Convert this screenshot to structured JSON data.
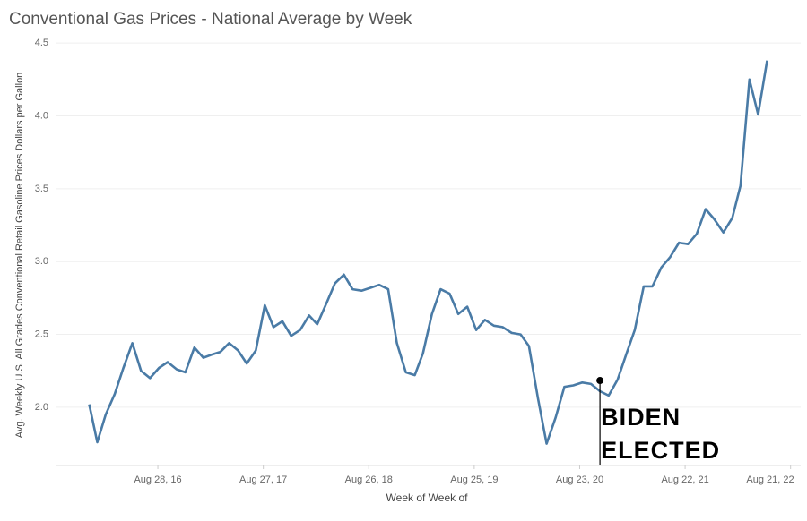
{
  "chart_data": {
    "type": "line",
    "title": "Conventional Gas Prices - National Average by Week",
    "x_label": "Week of Week of",
    "y_label": "Avg. Weekly U.S. All Grades Conventional Retail Gasoline Prices Dollars per Gallon",
    "x": [
      "2016-01-04",
      "2016-02-01",
      "2016-03-01",
      "2016-04-01",
      "2016-05-01",
      "2016-06-01",
      "2016-07-01",
      "2016-08-01",
      "2016-09-01",
      "2016-10-01",
      "2016-11-01",
      "2016-12-01",
      "2017-01-01",
      "2017-02-01",
      "2017-03-01",
      "2017-04-01",
      "2017-05-01",
      "2017-06-01",
      "2017-07-01",
      "2017-08-01",
      "2017-09-01",
      "2017-10-01",
      "2017-11-01",
      "2017-12-01",
      "2018-01-01",
      "2018-02-01",
      "2018-03-01",
      "2018-04-01",
      "2018-05-01",
      "2018-06-01",
      "2018-07-01",
      "2018-08-01",
      "2018-09-01",
      "2018-10-01",
      "2018-11-01",
      "2018-12-01",
      "2019-01-01",
      "2019-02-01",
      "2019-03-01",
      "2019-04-01",
      "2019-05-01",
      "2019-06-01",
      "2019-07-01",
      "2019-08-01",
      "2019-09-01",
      "2019-10-01",
      "2019-11-01",
      "2019-12-01",
      "2020-01-01",
      "2020-02-01",
      "2020-03-01",
      "2020-04-01",
      "2020-05-01",
      "2020-06-01",
      "2020-07-01",
      "2020-08-01",
      "2020-09-01",
      "2020-10-01",
      "2020-11-01",
      "2020-12-01",
      "2021-01-01",
      "2021-02-01",
      "2021-03-01",
      "2021-04-01",
      "2021-05-01",
      "2021-06-01",
      "2021-07-01",
      "2021-08-01",
      "2021-09-01",
      "2021-10-01",
      "2021-11-01",
      "2021-12-01",
      "2022-01-01",
      "2022-02-01",
      "2022-03-01",
      "2022-04-01",
      "2022-05-01",
      "2022-06-01"
    ],
    "series": [
      {
        "name": "Avg. Weekly U.S. All Grades Conventional Retail Gasoline Prices Dollars per Gallon",
        "color": "#4a7ba6",
        "values": [
          2.02,
          1.76,
          1.95,
          2.09,
          2.27,
          2.44,
          2.25,
          2.2,
          2.27,
          2.31,
          2.26,
          2.24,
          2.41,
          2.34,
          2.36,
          2.38,
          2.44,
          2.39,
          2.3,
          2.39,
          2.7,
          2.55,
          2.59,
          2.49,
          2.53,
          2.63,
          2.57,
          2.71,
          2.85,
          2.91,
          2.81,
          2.8,
          2.82,
          2.84,
          2.81,
          2.44,
          2.24,
          2.22,
          2.37,
          2.64,
          2.81,
          2.78,
          2.64,
          2.69,
          2.53,
          2.6,
          2.56,
          2.55,
          2.51,
          2.5,
          2.42,
          2.06,
          1.75,
          1.93,
          2.14,
          2.15,
          2.17,
          2.16,
          2.11,
          2.08,
          2.19,
          2.37,
          2.53,
          2.83,
          2.83,
          2.96,
          3.03,
          3.13,
          3.12,
          3.19,
          3.36,
          3.29,
          3.2,
          3.3,
          3.52,
          4.25,
          4.01,
          4.38
        ]
      }
    ],
    "xlim": [
      "2015-09-10",
      "2022-09-25"
    ],
    "xticks": [
      {
        "value": "2016-08-28",
        "label": "Aug 28, 16"
      },
      {
        "value": "2017-08-27",
        "label": "Aug 27, 17"
      },
      {
        "value": "2018-08-26",
        "label": "Aug 26, 18"
      },
      {
        "value": "2019-08-25",
        "label": "Aug 25, 19"
      },
      {
        "value": "2020-08-23",
        "label": "Aug 23, 20"
      },
      {
        "value": "2021-08-22",
        "label": "Aug 22, 21"
      },
      {
        "value": "2022-08-21",
        "label": "Aug 21, 22"
      }
    ],
    "ylim": [
      1.6,
      4.55
    ],
    "yticks": [
      {
        "value": 2,
        "label": "2.0"
      },
      {
        "value": 2.5,
        "label": "2.5"
      },
      {
        "value": 3,
        "label": "3.0"
      },
      {
        "value": 3.5,
        "label": "3.5"
      },
      {
        "value": 4,
        "label": "4.0"
      },
      {
        "value": 4.5,
        "label": "4.5"
      }
    ],
    "grid": true,
    "annotation": {
      "x": "2020-11-01",
      "lines": [
        "BIDEN",
        "ELECTED"
      ]
    }
  }
}
